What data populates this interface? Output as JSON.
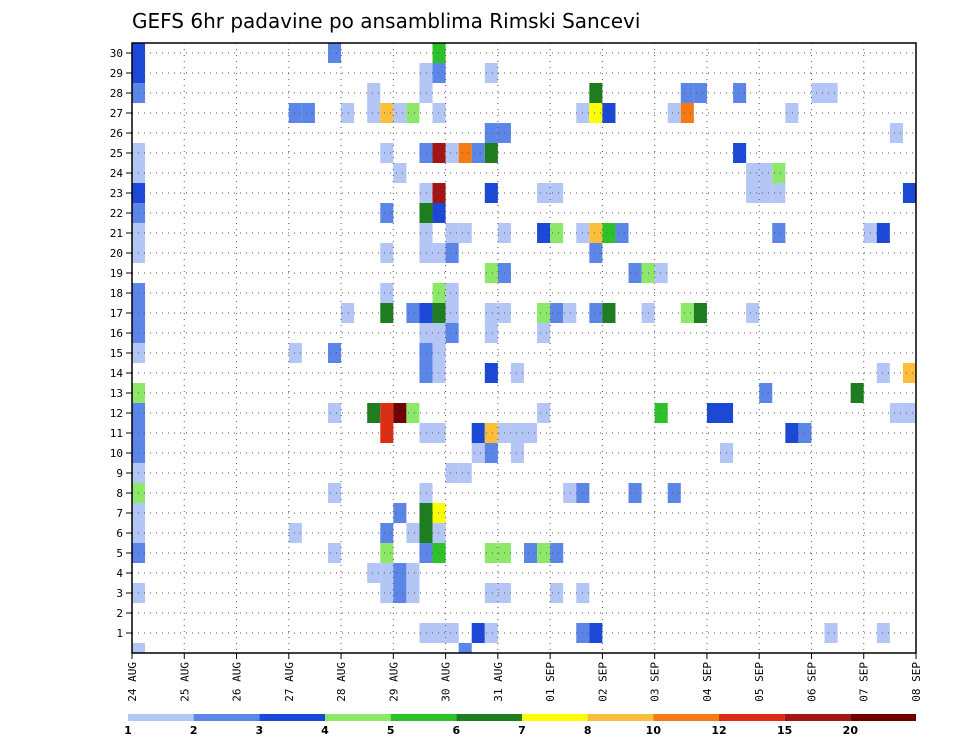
{
  "chart_data": {
    "type": "heatmap",
    "title": "GEFS 6hr padavine po ansamblima Rimski Sancevi",
    "xlabel": "",
    "ylabel": "",
    "x_ticks": [
      "24 AUG",
      "25 AUG",
      "26 AUG",
      "27 AUG",
      "28 AUG",
      "29 AUG",
      "30 AUG",
      "31 AUG",
      "01 SEP",
      "02 SEP",
      "03 SEP",
      "04 SEP",
      "05 SEP",
      "06 SEP",
      "07 SEP",
      "08 SEP"
    ],
    "y_ticks": [
      "1",
      "2",
      "3",
      "4",
      "5",
      "6",
      "7",
      "8",
      "9",
      "10",
      "11",
      "12",
      "13",
      "14",
      "15",
      "16",
      "17",
      "18",
      "19",
      "20",
      "21",
      "22",
      "23",
      "24",
      "25",
      "26",
      "27",
      "28",
      "29",
      "30"
    ],
    "x_range": [
      0,
      60
    ],
    "y_range": [
      0,
      30.5
    ],
    "grid": true,
    "colorbar": {
      "labels": [
        "1",
        "2",
        "3",
        "4",
        "5",
        "6",
        "7",
        "8",
        "10",
        "12",
        "15",
        "20"
      ],
      "colors": [
        "#b4c6f5",
        "#5b86e8",
        "#1b48d6",
        "#8de86a",
        "#2ec22a",
        "#1e7d1e",
        "#fbff00",
        "#fbbe3a",
        "#f57a14",
        "#dc2e14",
        "#a51414",
        "#6e0000"
      ]
    },
    "cells": [
      {
        "x": 0,
        "y": 30,
        "v": 3
      },
      {
        "x": 0,
        "y": 29,
        "v": 3
      },
      {
        "x": 0,
        "y": 28,
        "v": 2
      },
      {
        "x": 0,
        "y": 25,
        "v": 1
      },
      {
        "x": 0,
        "y": 24,
        "v": 1
      },
      {
        "x": 0,
        "y": 23,
        "v": 3
      },
      {
        "x": 0,
        "y": 22,
        "v": 2
      },
      {
        "x": 0,
        "y": 21,
        "v": 1
      },
      {
        "x": 0,
        "y": 20,
        "v": 1
      },
      {
        "x": 0,
        "y": 18,
        "v": 2
      },
      {
        "x": 0,
        "y": 17,
        "v": 2
      },
      {
        "x": 0,
        "y": 16,
        "v": 2
      },
      {
        "x": 0,
        "y": 15,
        "v": 1
      },
      {
        "x": 0,
        "y": 13,
        "v": 4
      },
      {
        "x": 0,
        "y": 12,
        "v": 2
      },
      {
        "x": 0,
        "y": 11,
        "v": 2
      },
      {
        "x": 0,
        "y": 10,
        "v": 2
      },
      {
        "x": 0,
        "y": 9,
        "v": 1
      },
      {
        "x": 0,
        "y": 8,
        "v": 4
      },
      {
        "x": 0,
        "y": 7,
        "v": 1
      },
      {
        "x": 0,
        "y": 6,
        "v": 1
      },
      {
        "x": 0,
        "y": 5,
        "v": 2
      },
      {
        "x": 0,
        "y": 3,
        "v": 1
      },
      {
        "x": 0,
        "y": 0,
        "v": 1
      },
      {
        "x": 12,
        "y": 27,
        "v": 2
      },
      {
        "x": 13,
        "y": 27,
        "v": 2
      },
      {
        "x": 12,
        "y": 15,
        "v": 1
      },
      {
        "x": 12,
        "y": 6,
        "v": 1
      },
      {
        "x": 15,
        "y": 30,
        "v": 2
      },
      {
        "x": 15,
        "y": 15,
        "v": 2
      },
      {
        "x": 15,
        "y": 12,
        "v": 1
      },
      {
        "x": 15,
        "y": 8,
        "v": 1
      },
      {
        "x": 15,
        "y": 5,
        "v": 1
      },
      {
        "x": 16,
        "y": 27,
        "v": 1
      },
      {
        "x": 16,
        "y": 17,
        "v": 1
      },
      {
        "x": 18,
        "y": 28,
        "v": 1
      },
      {
        "x": 18,
        "y": 27,
        "v": 1
      },
      {
        "x": 18,
        "y": 4,
        "v": 1
      },
      {
        "x": 19,
        "y": 27,
        "v": 8
      },
      {
        "x": 19,
        "y": 25,
        "v": 1
      },
      {
        "x": 19,
        "y": 22,
        "v": 2
      },
      {
        "x": 19,
        "y": 20,
        "v": 1
      },
      {
        "x": 19,
        "y": 18,
        "v": 1
      },
      {
        "x": 19,
        "y": 17,
        "v": 6
      },
      {
        "x": 19,
        "y": 12,
        "v": 12
      },
      {
        "x": 19,
        "y": 11,
        "v": 12
      },
      {
        "x": 19,
        "y": 6,
        "v": 2
      },
      {
        "x": 19,
        "y": 5,
        "v": 4
      },
      {
        "x": 19,
        "y": 4,
        "v": 1
      },
      {
        "x": 19,
        "y": 3,
        "v": 1
      },
      {
        "x": 18,
        "y": 12,
        "v": 6
      },
      {
        "x": 20,
        "y": 27,
        "v": 1
      },
      {
        "x": 20,
        "y": 24,
        "v": 1
      },
      {
        "x": 20,
        "y": 12,
        "v": 20
      },
      {
        "x": 20,
        "y": 7,
        "v": 2
      },
      {
        "x": 20,
        "y": 4,
        "v": 2
      },
      {
        "x": 20,
        "y": 3,
        "v": 2
      },
      {
        "x": 21,
        "y": 27,
        "v": 4
      },
      {
        "x": 21,
        "y": 17,
        "v": 2
      },
      {
        "x": 21,
        "y": 12,
        "v": 4
      },
      {
        "x": 21,
        "y": 6,
        "v": 1
      },
      {
        "x": 21,
        "y": 4,
        "v": 1
      },
      {
        "x": 21,
        "y": 3,
        "v": 1
      },
      {
        "x": 22,
        "y": 29,
        "v": 1
      },
      {
        "x": 22,
        "y": 28,
        "v": 1
      },
      {
        "x": 22,
        "y": 25,
        "v": 2
      },
      {
        "x": 22,
        "y": 23,
        "v": 1
      },
      {
        "x": 22,
        "y": 22,
        "v": 6
      },
      {
        "x": 22,
        "y": 21,
        "v": 1
      },
      {
        "x": 22,
        "y": 20,
        "v": 1
      },
      {
        "x": 22,
        "y": 17,
        "v": 3
      },
      {
        "x": 22,
        "y": 16,
        "v": 1
      },
      {
        "x": 22,
        "y": 15,
        "v": 2
      },
      {
        "x": 22,
        "y": 14,
        "v": 2
      },
      {
        "x": 22,
        "y": 11,
        "v": 1
      },
      {
        "x": 22,
        "y": 8,
        "v": 1
      },
      {
        "x": 22,
        "y": 7,
        "v": 6
      },
      {
        "x": 22,
        "y": 6,
        "v": 6
      },
      {
        "x": 22,
        "y": 5,
        "v": 2
      },
      {
        "x": 22,
        "y": 1,
        "v": 1
      },
      {
        "x": 23,
        "y": 30,
        "v": 5
      },
      {
        "x": 23,
        "y": 29,
        "v": 2
      },
      {
        "x": 23,
        "y": 27,
        "v": 1
      },
      {
        "x": 23,
        "y": 25,
        "v": 15
      },
      {
        "x": 23,
        "y": 23,
        "v": 15
      },
      {
        "x": 23,
        "y": 22,
        "v": 3
      },
      {
        "x": 23,
        "y": 20,
        "v": 1
      },
      {
        "x": 23,
        "y": 18,
        "v": 4
      },
      {
        "x": 23,
        "y": 17,
        "v": 6
      },
      {
        "x": 23,
        "y": 16,
        "v": 1
      },
      {
        "x": 23,
        "y": 15,
        "v": 1
      },
      {
        "x": 23,
        "y": 14,
        "v": 1
      },
      {
        "x": 23,
        "y": 11,
        "v": 1
      },
      {
        "x": 23,
        "y": 7,
        "v": 7
      },
      {
        "x": 23,
        "y": 6,
        "v": 1
      },
      {
        "x": 23,
        "y": 5,
        "v": 5
      },
      {
        "x": 23,
        "y": 1,
        "v": 1
      },
      {
        "x": 24,
        "y": 25,
        "v": 1
      },
      {
        "x": 24,
        "y": 21,
        "v": 1
      },
      {
        "x": 24,
        "y": 20,
        "v": 2
      },
      {
        "x": 24,
        "y": 18,
        "v": 1
      },
      {
        "x": 24,
        "y": 17,
        "v": 1
      },
      {
        "x": 24,
        "y": 16,
        "v": 2
      },
      {
        "x": 24,
        "y": 9,
        "v": 1
      },
      {
        "x": 24,
        "y": 1,
        "v": 1
      },
      {
        "x": 25,
        "y": 25,
        "v": 10
      },
      {
        "x": 25,
        "y": 21,
        "v": 1
      },
      {
        "x": 25,
        "y": 9,
        "v": 1
      },
      {
        "x": 25,
        "y": 0,
        "v": 2
      },
      {
        "x": 26,
        "y": 25,
        "v": 2
      },
      {
        "x": 26,
        "y": 11,
        "v": 3
      },
      {
        "x": 26,
        "y": 10,
        "v": 1
      },
      {
        "x": 26,
        "y": 1,
        "v": 3
      },
      {
        "x": 27,
        "y": 29,
        "v": 1
      },
      {
        "x": 27,
        "y": 26,
        "v": 2
      },
      {
        "x": 27,
        "y": 25,
        "v": 6
      },
      {
        "x": 27,
        "y": 23,
        "v": 3
      },
      {
        "x": 27,
        "y": 19,
        "v": 4
      },
      {
        "x": 27,
        "y": 17,
        "v": 1
      },
      {
        "x": 27,
        "y": 16,
        "v": 1
      },
      {
        "x": 27,
        "y": 14,
        "v": 3
      },
      {
        "x": 27,
        "y": 11,
        "v": 8
      },
      {
        "x": 27,
        "y": 10,
        "v": 2
      },
      {
        "x": 27,
        "y": 5,
        "v": 4
      },
      {
        "x": 27,
        "y": 3,
        "v": 1
      },
      {
        "x": 27,
        "y": 1,
        "v": 1
      },
      {
        "x": 28,
        "y": 26,
        "v": 2
      },
      {
        "x": 28,
        "y": 21,
        "v": 1
      },
      {
        "x": 28,
        "y": 19,
        "v": 2
      },
      {
        "x": 28,
        "y": 17,
        "v": 1
      },
      {
        "x": 28,
        "y": 11,
        "v": 1
      },
      {
        "x": 28,
        "y": 5,
        "v": 4
      },
      {
        "x": 28,
        "y": 3,
        "v": 1
      },
      {
        "x": 29,
        "y": 14,
        "v": 1
      },
      {
        "x": 29,
        "y": 11,
        "v": 1
      },
      {
        "x": 29,
        "y": 10,
        "v": 1
      },
      {
        "x": 30,
        "y": 11,
        "v": 1
      },
      {
        "x": 30,
        "y": 5,
        "v": 2
      },
      {
        "x": 31,
        "y": 23,
        "v": 1
      },
      {
        "x": 31,
        "y": 21,
        "v": 3
      },
      {
        "x": 31,
        "y": 17,
        "v": 4
      },
      {
        "x": 31,
        "y": 16,
        "v": 1
      },
      {
        "x": 31,
        "y": 12,
        "v": 1
      },
      {
        "x": 31,
        "y": 5,
        "v": 4
      },
      {
        "x": 32,
        "y": 23,
        "v": 1
      },
      {
        "x": 32,
        "y": 21,
        "v": 4
      },
      {
        "x": 32,
        "y": 17,
        "v": 2
      },
      {
        "x": 32,
        "y": 5,
        "v": 2
      },
      {
        "x": 32,
        "y": 3,
        "v": 1
      },
      {
        "x": 33,
        "y": 17,
        "v": 1
      },
      {
        "x": 33,
        "y": 8,
        "v": 1
      },
      {
        "x": 34,
        "y": 27,
        "v": 1
      },
      {
        "x": 34,
        "y": 21,
        "v": 1
      },
      {
        "x": 34,
        "y": 8,
        "v": 2
      },
      {
        "x": 34,
        "y": 3,
        "v": 1
      },
      {
        "x": 34,
        "y": 1,
        "v": 2
      },
      {
        "x": 35,
        "y": 28,
        "v": 6
      },
      {
        "x": 35,
        "y": 27,
        "v": 7
      },
      {
        "x": 35,
        "y": 21,
        "v": 8
      },
      {
        "x": 35,
        "y": 20,
        "v": 2
      },
      {
        "x": 35,
        "y": 17,
        "v": 2
      },
      {
        "x": 35,
        "y": 1,
        "v": 3
      },
      {
        "x": 36,
        "y": 27,
        "v": 3
      },
      {
        "x": 36,
        "y": 21,
        "v": 5
      },
      {
        "x": 36,
        "y": 17,
        "v": 6
      },
      {
        "x": 37,
        "y": 21,
        "v": 2
      },
      {
        "x": 38,
        "y": 19,
        "v": 2
      },
      {
        "x": 38,
        "y": 8,
        "v": 2
      },
      {
        "x": 39,
        "y": 19,
        "v": 4
      },
      {
        "x": 39,
        "y": 17,
        "v": 1
      },
      {
        "x": 40,
        "y": 19,
        "v": 1
      },
      {
        "x": 40,
        "y": 12,
        "v": 5
      },
      {
        "x": 41,
        "y": 27,
        "v": 1
      },
      {
        "x": 41,
        "y": 8,
        "v": 2
      },
      {
        "x": 42,
        "y": 28,
        "v": 2
      },
      {
        "x": 42,
        "y": 27,
        "v": 10
      },
      {
        "x": 42,
        "y": 17,
        "v": 4
      },
      {
        "x": 43,
        "y": 28,
        "v": 2
      },
      {
        "x": 43,
        "y": 17,
        "v": 6
      },
      {
        "x": 44,
        "y": 12,
        "v": 3
      },
      {
        "x": 45,
        "y": 12,
        "v": 3
      },
      {
        "x": 45,
        "y": 10,
        "v": 1
      },
      {
        "x": 46,
        "y": 28,
        "v": 2
      },
      {
        "x": 46,
        "y": 25,
        "v": 3
      },
      {
        "x": 47,
        "y": 24,
        "v": 1
      },
      {
        "x": 47,
        "y": 23,
        "v": 1
      },
      {
        "x": 47,
        "y": 17,
        "v": 1
      },
      {
        "x": 48,
        "y": 24,
        "v": 1
      },
      {
        "x": 48,
        "y": 23,
        "v": 1
      },
      {
        "x": 48,
        "y": 13,
        "v": 2
      },
      {
        "x": 49,
        "y": 24,
        "v": 4
      },
      {
        "x": 49,
        "y": 23,
        "v": 1
      },
      {
        "x": 49,
        "y": 21,
        "v": 2
      },
      {
        "x": 50,
        "y": 27,
        "v": 1
      },
      {
        "x": 50,
        "y": 11,
        "v": 3
      },
      {
        "x": 51,
        "y": 11,
        "v": 2
      },
      {
        "x": 52,
        "y": 28,
        "v": 1
      },
      {
        "x": 53,
        "y": 28,
        "v": 1
      },
      {
        "x": 53,
        "y": 1,
        "v": 1
      },
      {
        "x": 55,
        "y": 13,
        "v": 6
      },
      {
        "x": 56,
        "y": 21,
        "v": 1
      },
      {
        "x": 57,
        "y": 21,
        "v": 3
      },
      {
        "x": 57,
        "y": 14,
        "v": 1
      },
      {
        "x": 57,
        "y": 1,
        "v": 1
      },
      {
        "x": 58,
        "y": 26,
        "v": 1
      },
      {
        "x": 58,
        "y": 12,
        "v": 1
      },
      {
        "x": 59,
        "y": 23,
        "v": 3
      },
      {
        "x": 59,
        "y": 14,
        "v": 8
      },
      {
        "x": 59,
        "y": 12,
        "v": 1
      }
    ]
  }
}
